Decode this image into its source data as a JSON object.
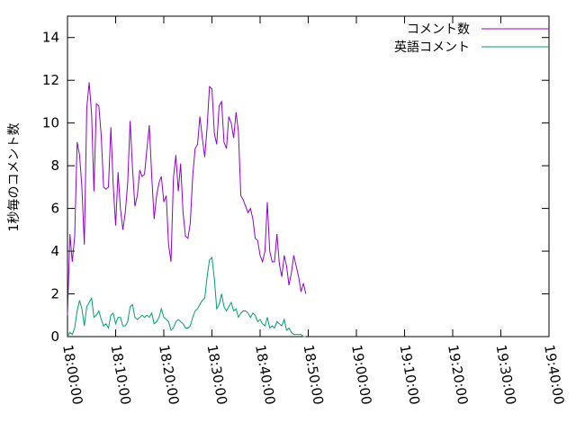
{
  "chart_data": {
    "type": "line",
    "ylabel": "1秒毎のコメント数",
    "xlabel": "",
    "title": "",
    "ylim": [
      0,
      15
    ],
    "y_ticks": [
      0,
      2,
      4,
      6,
      8,
      10,
      12,
      14
    ],
    "x_ticks": [
      "18:00:00",
      "18:10:00",
      "18:20:00",
      "18:30:00",
      "18:40:00",
      "18:50:00",
      "19:00:00",
      "19:10:00",
      "19:20:00",
      "19:30:00",
      "19:40:00"
    ],
    "x_range_minutes": [
      0,
      100
    ],
    "x_sample_interval_minutes": 0.5,
    "grid": false,
    "legend_position": "top-right",
    "series": [
      {
        "name": "コメント数",
        "color": "#9400d3",
        "values": [
          1.0,
          4.8,
          3.5,
          4.7,
          9.1,
          8.5,
          7.0,
          4.3,
          10.7,
          11.9,
          10.4,
          6.8,
          10.9,
          10.8,
          9.4,
          7.0,
          6.9,
          7.0,
          9.8,
          7.1,
          5.2,
          7.7,
          6.0,
          5.0,
          5.8,
          7.2,
          10.1,
          7.9,
          6.1,
          6.6,
          7.8,
          7.5,
          7.6,
          8.8,
          9.9,
          7.5,
          5.5,
          6.6,
          7.2,
          7.5,
          6.3,
          6.6,
          4.3,
          3.5,
          7.4,
          8.5,
          6.8,
          8.1,
          5.8,
          4.7,
          4.6,
          5.3,
          7.5,
          8.8,
          9.0,
          10.3,
          9.3,
          8.4,
          9.8,
          11.7,
          11.6,
          9.5,
          9.0,
          10.8,
          11.0,
          9.1,
          8.8,
          10.3,
          10.0,
          9.3,
          10.5,
          9.6,
          6.6,
          6.4,
          6.1,
          5.8,
          6.0,
          5.5,
          4.6,
          4.5,
          3.8,
          3.5,
          4.0,
          6.3,
          4.0,
          3.5,
          3.5,
          4.8,
          3.4,
          2.8,
          3.8,
          3.3,
          2.4,
          3.0,
          3.8,
          3.3,
          2.8,
          2.1,
          2.5,
          2.0
        ]
      },
      {
        "name": "英語コメント",
        "color": "#009e73",
        "values": [
          0.0,
          0.2,
          0.1,
          0.4,
          1.2,
          1.7,
          1.3,
          0.5,
          1.4,
          1.6,
          1.8,
          0.9,
          1.0,
          1.2,
          0.8,
          0.5,
          0.6,
          0.4,
          1.0,
          1.1,
          0.6,
          0.9,
          0.9,
          0.5,
          0.5,
          0.7,
          1.4,
          1.5,
          0.9,
          0.8,
          0.9,
          1.0,
          0.9,
          1.0,
          0.9,
          1.1,
          0.6,
          0.7,
          0.9,
          1.3,
          0.9,
          0.8,
          0.7,
          0.3,
          0.4,
          0.7,
          0.8,
          0.7,
          0.6,
          0.4,
          0.4,
          0.5,
          0.9,
          1.2,
          1.3,
          1.5,
          1.7,
          1.8,
          2.8,
          3.6,
          3.7,
          2.7,
          1.3,
          1.5,
          2.0,
          1.4,
          1.2,
          1.4,
          1.6,
          1.2,
          1.3,
          0.9,
          1.1,
          1.2,
          1.2,
          1.1,
          0.9,
          1.1,
          1.0,
          0.7,
          0.8,
          0.6,
          0.5,
          0.9,
          0.4,
          0.5,
          0.4,
          0.7,
          0.6,
          0.5,
          0.8,
          0.3,
          0.4,
          0.2,
          0.1,
          0.1,
          0.1,
          0.1,
          0.0,
          0.0
        ]
      }
    ]
  }
}
